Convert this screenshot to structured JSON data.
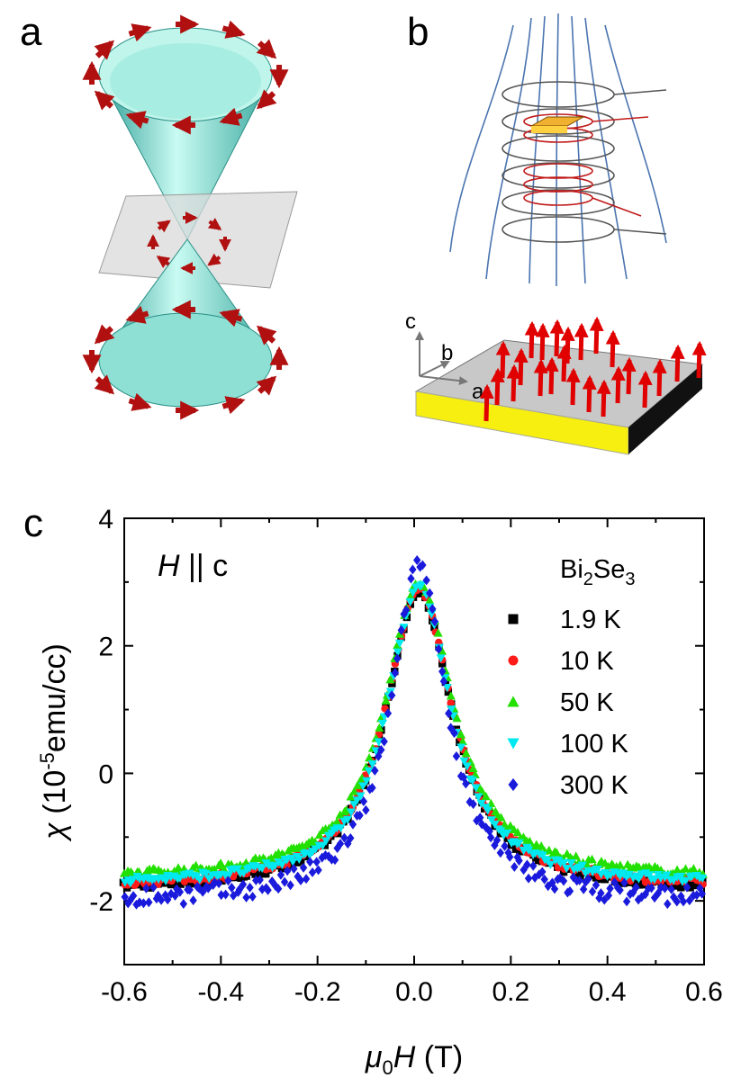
{
  "panels": {
    "a": "a",
    "b": "b",
    "c": "c"
  },
  "panel_b": {
    "axis_c": "c",
    "axis_b": "b",
    "axis_a": "a"
  },
  "colors": {
    "cone": "#6fe3d2",
    "cone_edge": "#2a8f86",
    "spin_arrow": "#b01010",
    "field_line": "#4a74b0",
    "coil": "#c11a1a",
    "slab_top": "#c8c8c8",
    "slab_side": "#f6ef10",
    "moment_arrow": "#e00000"
  },
  "chart_data": {
    "type": "scatter",
    "annotation": "H || c",
    "legend_title_main": "Bi",
    "legend_title_sub1": "2",
    "legend_title_mid": "Se",
    "legend_title_sub2": "3",
    "xlabel_mu": "μ",
    "xlabel_sub": "0",
    "xlabel_rest": "H (T)",
    "ylabel_chi": "χ",
    "ylabel_rest": " (10",
    "ylabel_exp": "-5",
    "ylabel_unit": "emu/cc)",
    "xlim": [
      -0.6,
      0.6
    ],
    "ylim": [
      -3,
      4
    ],
    "xticks": [
      "-0.6",
      "-0.4",
      "-0.2",
      "0.0",
      "0.2",
      "0.4",
      "0.6"
    ],
    "yticks": [
      "-2",
      "0",
      "2",
      "4"
    ],
    "series": [
      {
        "name": "1.9 K",
        "color": "#000000",
        "marker": "square",
        "peak": 2.85,
        "base": -1.85,
        "width": 0.085
      },
      {
        "name": "10 K",
        "color": "#ff1a1a",
        "marker": "circle",
        "peak": 2.9,
        "base": -1.8,
        "width": 0.085
      },
      {
        "name": "50 K",
        "color": "#22e000",
        "marker": "triangle",
        "peak": 3.0,
        "base": -1.65,
        "width": 0.085
      },
      {
        "name": "100 K",
        "color": "#00e8f0",
        "marker": "tri-down",
        "peak": 2.95,
        "base": -1.75,
        "width": 0.08
      },
      {
        "name": "300 K",
        "color": "#1a1adc",
        "marker": "diamond",
        "peak": 3.3,
        "base": -2.0,
        "width": 0.07
      }
    ]
  }
}
